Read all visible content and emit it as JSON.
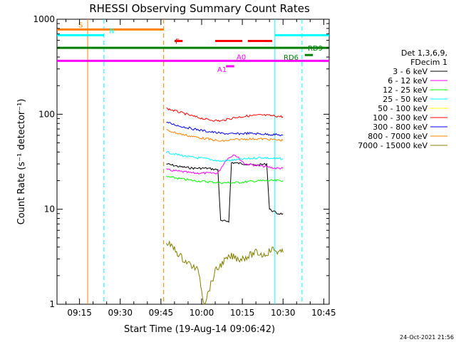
{
  "chart_data": {
    "type": "line",
    "title": "RHESSI Observing Summary Count Rates",
    "xlabel": "Start Time (19-Aug-14 09:06:42)",
    "ylabel": "Count Rate (s⁻¹ detector⁻¹)",
    "yscale": "log",
    "ylim": [
      1,
      1000
    ],
    "xlim": [
      "09:06:42",
      "10:47:00"
    ],
    "x_ticks": [
      "09:15",
      "09:30",
      "09:45",
      "10:00",
      "10:15",
      "10:30",
      "10:45"
    ],
    "y_ticks": [
      "1",
      "10",
      "100",
      "1000"
    ],
    "legend": {
      "header": [
        "Det 1,3,6,9,",
        "FDecim 1"
      ],
      "placement": "right"
    },
    "data_window": [
      "09:47:00",
      "10:31:00"
    ],
    "series": [
      {
        "name": "3 - 6 keV",
        "color": "#000000",
        "points": [
          [
            "09:47",
            30
          ],
          [
            "09:52",
            28
          ],
          [
            "09:57",
            27
          ],
          [
            "10:02",
            27
          ],
          [
            "10:06",
            26
          ],
          [
            "10:07",
            7.5
          ],
          [
            "10:10",
            7.5
          ],
          [
            "10:11",
            31
          ],
          [
            "10:16",
            30
          ],
          [
            "10:20",
            29
          ],
          [
            "10:24",
            30
          ],
          [
            "10:25",
            10
          ],
          [
            "10:28",
            9
          ],
          [
            "10:30",
            9
          ]
        ]
      },
      {
        "name": "6 - 12 keV",
        "color": "#ff00ff",
        "points": [
          [
            "09:47",
            26
          ],
          [
            "09:52",
            25
          ],
          [
            "09:57",
            24
          ],
          [
            "10:02",
            24
          ],
          [
            "10:06",
            24
          ],
          [
            "10:09",
            33
          ],
          [
            "10:12",
            38
          ],
          [
            "10:16",
            30
          ],
          [
            "10:20",
            29
          ],
          [
            "10:24",
            28
          ],
          [
            "10:27",
            27
          ],
          [
            "10:30",
            27
          ]
        ]
      },
      {
        "name": "12 - 25 keV",
        "color": "#00ff00",
        "points": [
          [
            "09:47",
            22
          ],
          [
            "09:52",
            21
          ],
          [
            "09:57",
            20
          ],
          [
            "10:02",
            19.5
          ],
          [
            "10:07",
            19
          ],
          [
            "10:12",
            19
          ],
          [
            "10:17",
            19.5
          ],
          [
            "10:22",
            20
          ],
          [
            "10:27",
            20
          ],
          [
            "10:30",
            20
          ]
        ]
      },
      {
        "name": "25 - 50 keV",
        "color": "#00ffff",
        "points": [
          [
            "09:47",
            40
          ],
          [
            "09:52",
            37
          ],
          [
            "09:57",
            35
          ],
          [
            "10:02",
            34
          ],
          [
            "10:07",
            32
          ],
          [
            "10:12",
            33
          ],
          [
            "10:17",
            34
          ],
          [
            "10:22",
            35
          ],
          [
            "10:27",
            34
          ],
          [
            "10:30",
            34
          ]
        ]
      },
      {
        "name": "50 - 100 keV",
        "color": "#ffff00",
        "points": []
      },
      {
        "name": "100 - 300 keV",
        "color": "#ff0000",
        "points": [
          [
            "09:47",
            115
          ],
          [
            "09:52",
            105
          ],
          [
            "09:57",
            95
          ],
          [
            "10:02",
            88
          ],
          [
            "10:07",
            85
          ],
          [
            "10:12",
            92
          ],
          [
            "10:17",
            96
          ],
          [
            "10:22",
            98
          ],
          [
            "10:27",
            96
          ],
          [
            "10:30",
            94
          ]
        ]
      },
      {
        "name": "300 - 800 keV",
        "color": "#0000ff",
        "points": [
          [
            "09:47",
            82
          ],
          [
            "09:52",
            75
          ],
          [
            "09:57",
            70
          ],
          [
            "10:02",
            66
          ],
          [
            "10:07",
            63
          ],
          [
            "10:12",
            62
          ],
          [
            "10:17",
            63
          ],
          [
            "10:22",
            62
          ],
          [
            "10:27",
            61
          ],
          [
            "10:30",
            60
          ]
        ]
      },
      {
        "name": "800 - 7000 keV",
        "color": "#ff8000",
        "points": [
          [
            "09:47",
            68
          ],
          [
            "09:52",
            62
          ],
          [
            "09:57",
            58
          ],
          [
            "10:02",
            55
          ],
          [
            "10:07",
            52
          ],
          [
            "10:12",
            54
          ],
          [
            "10:17",
            55
          ],
          [
            "10:22",
            55
          ],
          [
            "10:27",
            54
          ],
          [
            "10:30",
            53
          ]
        ]
      },
      {
        "name": "7000 - 15000 keV",
        "color": "#808000",
        "points": [
          [
            "09:47",
            4.5
          ],
          [
            "09:50",
            3.8
          ],
          [
            "09:53",
            3.0
          ],
          [
            "09:56",
            2.6
          ],
          [
            "09:59",
            2.2
          ],
          [
            "10:00",
            1.4
          ],
          [
            "10:01",
            1.0
          ],
          [
            "10:03",
            1.5
          ],
          [
            "10:05",
            2.2
          ],
          [
            "10:08",
            2.8
          ],
          [
            "10:11",
            3.2
          ],
          [
            "10:14",
            3.0
          ],
          [
            "10:17",
            3.2
          ],
          [
            "10:20",
            3.5
          ],
          [
            "10:23",
            3.3
          ],
          [
            "10:26",
            3.8
          ],
          [
            "10:29",
            3.5
          ],
          [
            "10:30",
            3.5
          ]
        ]
      }
    ],
    "flags": [
      {
        "label": "S",
        "color": "#ff8000",
        "segments": [
          [
            "09:06:42",
            "09:46:00"
          ]
        ],
        "value": 780
      },
      {
        "label": "N",
        "color": "#00ffff",
        "segments": [
          [
            "09:06:42",
            "09:24:00"
          ],
          [
            "10:27:00",
            "10:47:00"
          ]
        ],
        "value": 680
      },
      {
        "label": "F",
        "color": "#ff0000",
        "segments": [
          [
            "09:50:00",
            "09:53:00"
          ],
          [
            "10:05:00",
            "10:15:00"
          ],
          [
            "10:17:00",
            "10:26:00"
          ]
        ],
        "value": 590
      },
      {
        "label": "RD9",
        "color": "#008000",
        "segments": [
          [
            "09:06:42",
            "10:47:00"
          ]
        ],
        "value": 500
      },
      {
        "label": "RD6",
        "color": "#008000",
        "segments": [
          [
            "10:38:00",
            "10:41:00"
          ]
        ],
        "value": 420
      },
      {
        "label": "A0",
        "color": "#ff00ff",
        "segments": [
          [
            "09:06:42",
            "10:47:00"
          ]
        ],
        "value": 365
      },
      {
        "label": "A1",
        "color": "#ff00ff",
        "segments": [
          [
            "10:09:00",
            "10:12:00"
          ]
        ],
        "value": 320
      }
    ],
    "vlines": [
      {
        "time": "09:18:00",
        "color": "#ff8000",
        "style": "solid"
      },
      {
        "time": "09:24:00",
        "color": "#00ffff",
        "style": "dashed"
      },
      {
        "time": "09:46:00",
        "color": "#ff8000",
        "style": "dashed"
      },
      {
        "time": "10:27:00",
        "color": "#00ffff",
        "style": "solid"
      },
      {
        "time": "10:37:00",
        "color": "#00ffff",
        "style": "dashed"
      }
    ]
  },
  "timestamp": "24-Oct-2021 21:56"
}
